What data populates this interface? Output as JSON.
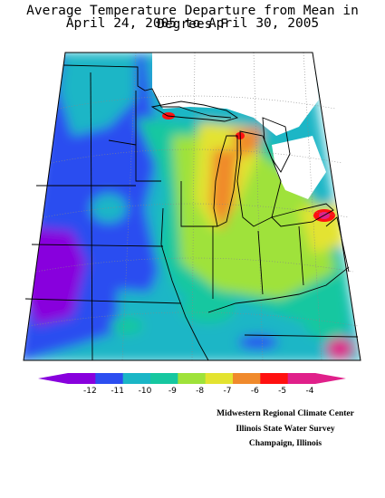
{
  "title": {
    "line1": "Average Temperature Departure from Mean in Degrees F",
    "line2": "April 24, 2005 to April 30, 2005"
  },
  "legend": {
    "bins": [
      {
        "label": "-12",
        "color": "#8800dd"
      },
      {
        "label": "-11",
        "color": "#2c4ef0"
      },
      {
        "label": "-10",
        "color": "#1ab6c6"
      },
      {
        "label": "-9",
        "color": "#16c7a0"
      },
      {
        "label": "-8",
        "color": "#9fe23a"
      },
      {
        "label": "-7",
        "color": "#e3e330"
      },
      {
        "label": "-6",
        "color": "#f08a2c"
      },
      {
        "label": "-5",
        "color": "#ff1010"
      },
      {
        "label": "-4",
        "color": "#e0208a"
      }
    ],
    "low_end_color": "#8800dd",
    "high_end_color": "#e0208a"
  },
  "credits": {
    "line1": "Midwestern Regional Climate Center",
    "line2": "Illinois State Water Survey",
    "line3": "Champaign, Illinois"
  }
}
